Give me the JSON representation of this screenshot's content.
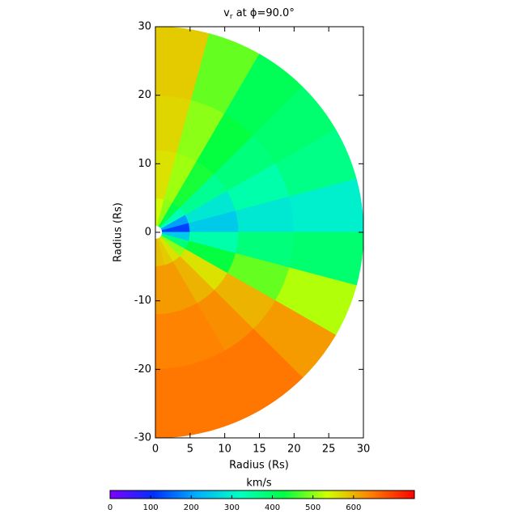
{
  "chart_data": {
    "type": "polar_heatmap",
    "title": {
      "symbol": "v",
      "subscript": "r",
      "text": " at ϕ=90.0°"
    },
    "xlabel": "Radius (Rs)",
    "ylabel": "Radius (Rs)",
    "xlim": [
      0,
      30
    ],
    "ylim": [
      -30,
      30
    ],
    "xticks": [
      0,
      5,
      10,
      15,
      20,
      25,
      30
    ],
    "yticks": [
      -30,
      -20,
      -10,
      0,
      10,
      20,
      30
    ],
    "angle_edges": [
      90,
      75,
      60,
      45,
      30,
      15,
      0,
      -15,
      -30,
      -45,
      -60,
      -75,
      -90
    ],
    "radius_edges": [
      1,
      5,
      12,
      20,
      30
    ],
    "values": [
      [
        540,
        560,
        570,
        580
      ],
      [
        500,
        510,
        500,
        480
      ],
      [
        420,
        440,
        430,
        410
      ],
      [
        330,
        360,
        380,
        390
      ],
      [
        200,
        290,
        340,
        370
      ],
      [
        120,
        250,
        290,
        300
      ],
      [
        250,
        340,
        380,
        390
      ],
      [
        380,
        430,
        480,
        520
      ],
      [
        500,
        560,
        600,
        620
      ],
      [
        560,
        600,
        630,
        650
      ],
      [
        580,
        620,
        640,
        650
      ],
      [
        590,
        620,
        640,
        650
      ]
    ],
    "colorbar": {
      "label": "km/s",
      "clim": [
        0,
        750
      ],
      "ticks": [
        0,
        100,
        200,
        300,
        400,
        500,
        600
      ],
      "colors": [
        "#8000ff",
        "#0030ff",
        "#00b0ff",
        "#00ffc0",
        "#00ff40",
        "#d0ff00",
        "#ff8000",
        "#ff0000"
      ]
    }
  }
}
